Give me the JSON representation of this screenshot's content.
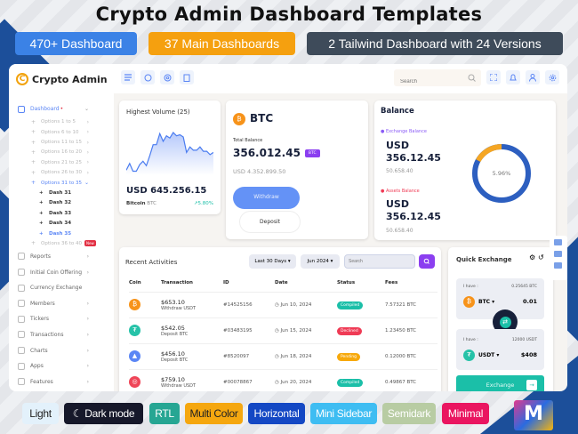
{
  "headline": "Crypto Admin Dashboard Templates",
  "tags": [
    {
      "label": "470+ Dashboard",
      "color": "#3b82e6"
    },
    {
      "label": "37 Main Dashboards",
      "color": "#f5a00f"
    },
    {
      "label": "2 Tailwind Dashboard with 24 Versions",
      "color": "#3e4b5a"
    }
  ],
  "app": {
    "name": "Crypto Admin"
  },
  "sidebar": {
    "dashboard": "Dashboard",
    "options": [
      "Options 1 to 5",
      "Options 6 to 10",
      "Options 11 to 15",
      "Options 16 to 20",
      "Options 21 to 25",
      "Options 26 to 30",
      "Options 31 to 35"
    ],
    "dashes": [
      "Dash 31",
      "Dash 32",
      "Dash 33",
      "Dash 34",
      "Dash 35"
    ],
    "last_option": "Options 36 to 40",
    "new_badge": "New",
    "items": [
      "Reports",
      "Initial Coin Offering",
      "Currency Exchange",
      "Members",
      "Tickers",
      "Transactions",
      "Charts",
      "Apps",
      "Features"
    ]
  },
  "topbar": {
    "search_placeholder": "Search"
  },
  "volume": {
    "title": "Highest Volume (25)",
    "amount": "USD 645.256.15",
    "coin": "Bitcoin",
    "symbol": "BTC",
    "change": "5.80%",
    "series": [
      3,
      9,
      2,
      2,
      8,
      11,
      7,
      16,
      26,
      26,
      36,
      29,
      34,
      32,
      37,
      34,
      35,
      33,
      19,
      24,
      21,
      21,
      24,
      20,
      20,
      17,
      19
    ]
  },
  "btc": {
    "name": "BTC",
    "label": "Total Balance",
    "amount": "356.012.45",
    "unit": "BTC",
    "usd": "USD 4.352.899.50",
    "withdraw": "Withdraw",
    "deposit": "Deposit"
  },
  "balance": {
    "title": "Balance",
    "exchange_label": "Exchange Balance",
    "exchange_amount_1": "USD",
    "exchange_amount_2": "356.12.45",
    "exchange_sub": "50.658.40",
    "assets_label": "Assets Balance",
    "assets_amount_1": "USD",
    "assets_amount_2": "356.12.45",
    "assets_sub": "50.658.40",
    "percent": "5.96%",
    "fraction": 0.17,
    "colors": {
      "main": "#2d5fc0",
      "accent": "#f5a623"
    }
  },
  "activities": {
    "title": "Recent Activities",
    "filter1": "Last 30 Days",
    "filter2": "Jun 2024",
    "search_placeholder": "Search",
    "columns": [
      "Coin",
      "Transaction",
      "ID",
      "Date",
      "Status",
      "Fees"
    ],
    "rows": [
      {
        "coin": "bitcoin",
        "color": "#f7931a",
        "glyph": "₿",
        "amount": "$653.10",
        "type": "Withdraw USDT",
        "id": "#14525156",
        "date": "Jun 10, 2024",
        "status": "Compiled",
        "status_color": "#1bbfa8",
        "fees": "7.57321 BTC"
      },
      {
        "coin": "tether",
        "color": "#26c2a8",
        "glyph": "₮",
        "amount": "$542.05",
        "type": "Deposit BTC",
        "id": "#03483195",
        "date": "Jun 15, 2024",
        "status": "Declined",
        "status_color": "#ef3b55",
        "fees": "1.23450 BTC"
      },
      {
        "coin": "arweave",
        "color": "#5b86f5",
        "glyph": "▲",
        "amount": "$456.10",
        "type": "Deposit BTC",
        "id": "#8520097",
        "date": "Jun 18, 2024",
        "status": "Pending",
        "status_color": "#f7a90c",
        "fees": "0.12000 BTC"
      },
      {
        "coin": "other",
        "color": "#ef4558",
        "glyph": "◎",
        "amount": "$759.10",
        "type": "Withdraw USDT",
        "id": "#00078867",
        "date": "Jun 20, 2024",
        "status": "Compiled",
        "status_color": "#1bbfa8",
        "fees": "0.49867 BTC"
      }
    ]
  },
  "exchange": {
    "title": "Quick Exchange",
    "have": "I have :",
    "from_bal": "0.25645 BTC",
    "from": "BTC",
    "from_val": "0.01",
    "to_bal": "12000 USDT",
    "to": "USDT",
    "to_val": "$408",
    "button": "Exchange"
  },
  "themes": [
    {
      "label": "Light",
      "bg": "#e3f1fb",
      "fg": "#222"
    },
    {
      "label": "Dark mode",
      "bg": "#16182a",
      "fg": "#fff"
    },
    {
      "label": "RTL",
      "bg": "#26a693",
      "fg": "#fff"
    },
    {
      "label": "Multi Color",
      "bg": "#f5a70f",
      "fg": "#222"
    },
    {
      "label": "Horizontal",
      "bg": "#1448c4",
      "fg": "#fff"
    },
    {
      "label": "Mini Sidebar",
      "bg": "#3ebdf2",
      "fg": "#fff"
    },
    {
      "label": "Semidark",
      "bg": "#b8cca3",
      "fg": "#fff"
    },
    {
      "label": "Minimal",
      "bg": "#ea1560",
      "fg": "#fff"
    }
  ],
  "brand_logo": "MULTIPURPOSE THEMES"
}
